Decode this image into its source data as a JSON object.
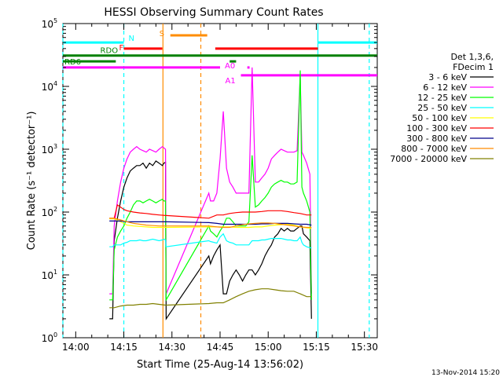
{
  "chart_data": {
    "type": "line",
    "title": "HESSI Observing Summary Count Rates",
    "xlabel": "Start Time (25-Aug-14 13:56:02)",
    "ylabel": "Count Rate (s⁻¹ detector⁻¹)",
    "x_unit": "minutes since 13:56:02",
    "x_ticks": [
      {
        "label": "14:00",
        "min": 4
      },
      {
        "label": "14:15",
        "min": 19
      },
      {
        "label": "14:30",
        "min": 34
      },
      {
        "label": "14:45",
        "min": 49
      },
      {
        "label": "15:00",
        "min": 64
      },
      {
        "label": "15:15",
        "min": 79
      },
      {
        "label": "15:30",
        "min": 94
      }
    ],
    "xlim": [
      0,
      98
    ],
    "y_scale": "log",
    "ylim": [
      1,
      100000
    ],
    "y_ticks": [
      {
        "label": "10",
        "exp": "0",
        "value": 1
      },
      {
        "label": "10",
        "exp": "1",
        "value": 10
      },
      {
        "label": "10",
        "exp": "2",
        "value": 100
      },
      {
        "label": "10",
        "exp": "3",
        "value": 1000
      },
      {
        "label": "10",
        "exp": "4",
        "value": 10000
      },
      {
        "label": "10",
        "exp": "5",
        "value": 100000
      }
    ],
    "legend": {
      "header": [
        "Det 1,3,6,",
        "FDecim 1"
      ],
      "placement": "right"
    },
    "series": [
      {
        "name": "3 - 6 keV",
        "color": "#000000",
        "x": [
          14.5,
          15.5,
          16,
          17,
          18,
          19,
          20,
          21,
          22,
          23,
          24,
          25,
          26,
          27,
          28,
          29,
          30,
          31,
          31.5,
          32,
          32.2,
          45.5,
          46,
          47,
          48,
          49,
          50,
          51,
          52,
          53,
          54,
          55,
          56,
          57,
          58,
          59,
          60,
          61,
          62,
          63,
          64,
          65,
          66,
          67,
          68,
          69,
          70,
          71,
          72,
          73,
          74,
          74.5,
          75,
          76,
          77,
          77.5
        ],
        "y": [
          2,
          2,
          35,
          80,
          150,
          250,
          350,
          450,
          500,
          550,
          550,
          600,
          500,
          600,
          550,
          650,
          600,
          550,
          600,
          620,
          2,
          20,
          15,
          20,
          25,
          30,
          5,
          5,
          8,
          10,
          12,
          10,
          8,
          10,
          12,
          12,
          10,
          12,
          15,
          20,
          25,
          30,
          40,
          45,
          55,
          50,
          55,
          50,
          50,
          55,
          60,
          60,
          45,
          40,
          35,
          2
        ]
      },
      {
        "name": "6 - 12 keV",
        "color": "#ff00ff",
        "x": [
          14.5,
          15.5,
          16,
          17,
          18,
          19,
          20,
          21,
          22,
          23,
          24,
          25,
          26,
          27,
          28,
          29,
          30,
          31,
          31.5,
          32,
          32.2,
          45.5,
          46,
          47,
          48,
          49,
          50,
          51,
          52,
          53,
          54,
          55,
          56,
          57,
          58,
          59,
          60,
          61,
          62,
          63,
          64,
          65,
          66,
          67,
          68,
          69,
          70,
          71,
          72,
          73,
          74,
          74.5,
          75,
          76,
          77,
          77.5
        ],
        "y": [
          5,
          5,
          60,
          150,
          300,
          500,
          700,
          900,
          1000,
          1100,
          1000,
          950,
          900,
          1000,
          950,
          900,
          1000,
          1100,
          1050,
          1000,
          5,
          200,
          150,
          150,
          200,
          700,
          4000,
          500,
          300,
          250,
          200,
          200,
          200,
          200,
          200,
          20000,
          300,
          300,
          350,
          400,
          500,
          700,
          800,
          900,
          1000,
          950,
          900,
          900,
          900,
          950,
          15000,
          900,
          800,
          600,
          400,
          5
        ]
      },
      {
        "name": "12 - 25 keV",
        "color": "#00ff00",
        "x": [
          14.5,
          15.5,
          16,
          17,
          18,
          19,
          20,
          21,
          22,
          23,
          24,
          25,
          26,
          27,
          28,
          29,
          30,
          31,
          31.5,
          32,
          32.2,
          45.5,
          46,
          47,
          48,
          49,
          50,
          51,
          52,
          53,
          54,
          55,
          56,
          57,
          58,
          59,
          60,
          61,
          62,
          63,
          64,
          65,
          66,
          67,
          68,
          69,
          70,
          71,
          72,
          73,
          74,
          74.5,
          75,
          76,
          77,
          77.5
        ],
        "y": [
          4,
          4,
          25,
          40,
          50,
          60,
          80,
          100,
          130,
          150,
          150,
          140,
          150,
          160,
          150,
          140,
          150,
          160,
          150,
          150,
          4,
          60,
          50,
          45,
          40,
          50,
          60,
          80,
          80,
          70,
          60,
          60,
          60,
          60,
          70,
          800,
          120,
          130,
          150,
          170,
          200,
          250,
          280,
          300,
          320,
          300,
          300,
          280,
          280,
          300,
          18000,
          250,
          200,
          150,
          100,
          4
        ]
      },
      {
        "name": "25 - 50 keV",
        "color": "#00ffff",
        "x": [
          14.5,
          15.5,
          16,
          17,
          18,
          19,
          20,
          21,
          22,
          23,
          24,
          25,
          26,
          27,
          28,
          29,
          30,
          31,
          31.5,
          32,
          32.2,
          45.5,
          46,
          47,
          48,
          49,
          50,
          51,
          52,
          53,
          54,
          55,
          56,
          57,
          58,
          59,
          60,
          61,
          62,
          63,
          64,
          65,
          66,
          67,
          68,
          69,
          70,
          71,
          72,
          73,
          74,
          74.5,
          75,
          76,
          77,
          77.5
        ],
        "y": [
          28,
          28,
          30,
          30,
          30,
          32,
          33,
          35,
          35,
          35,
          36,
          35,
          35,
          36,
          37,
          36,
          35,
          36,
          37,
          36,
          28,
          35,
          34,
          33,
          32,
          40,
          45,
          35,
          33,
          32,
          30,
          30,
          30,
          30,
          30,
          35,
          35,
          35,
          36,
          36,
          37,
          38,
          38,
          38,
          38,
          37,
          36,
          36,
          35,
          35,
          40,
          33,
          30,
          28,
          27,
          27
        ]
      },
      {
        "name": "50 - 100 keV",
        "color": "#ffff00",
        "x": [
          14.5,
          16,
          18,
          20,
          22,
          24,
          26,
          28,
          30,
          32,
          32.2,
          45.5,
          48,
          50,
          52,
          54,
          56,
          58,
          60,
          62,
          64,
          66,
          68,
          70,
          72,
          74,
          76,
          77.5
        ],
        "y": [
          78,
          78,
          70,
          62,
          60,
          59,
          58,
          57,
          57,
          57,
          57,
          58,
          58,
          58,
          58,
          57,
          57,
          57,
          58,
          58,
          60,
          62,
          63,
          64,
          62,
          58,
          56,
          55
        ]
      },
      {
        "name": "100 - 300 keV",
        "color": "#ff0000",
        "x": [
          14.5,
          16,
          17,
          18,
          19,
          20,
          22,
          24,
          26,
          28,
          30,
          32,
          32.2,
          45.5,
          48,
          50,
          52,
          54,
          56,
          58,
          60,
          62,
          64,
          66,
          68,
          70,
          72,
          74,
          76,
          77.5
        ],
        "y": [
          80,
          80,
          130,
          120,
          110,
          105,
          100,
          97,
          95,
          92,
          90,
          88,
          88,
          80,
          90,
          90,
          95,
          98,
          100,
          100,
          100,
          102,
          105,
          105,
          105,
          102,
          98,
          95,
          90,
          90
        ]
      },
      {
        "name": "300 - 800 keV",
        "color": "#00008b",
        "x": [
          14.5,
          16,
          18,
          20,
          22,
          24,
          26,
          28,
          30,
          32,
          32.2,
          45.5,
          48,
          50,
          52,
          54,
          56,
          58,
          60,
          62,
          64,
          66,
          68,
          70,
          72,
          74,
          76,
          77.5
        ],
        "y": [
          72,
          72,
          72,
          70,
          70,
          70,
          70,
          70,
          70,
          70,
          70,
          68,
          66,
          64,
          64,
          64,
          64,
          64,
          64,
          65,
          65,
          66,
          66,
          66,
          65,
          64,
          64,
          62
        ]
      },
      {
        "name": "800 - 7000 keV",
        "color": "#ff8c00",
        "x": [
          14.5,
          16,
          18,
          20,
          22,
          24,
          26,
          28,
          30,
          32,
          32.2,
          45.5,
          48,
          50,
          52,
          54,
          56,
          58,
          60,
          62,
          64,
          66,
          68,
          70,
          72,
          74,
          76,
          77.5
        ],
        "y": [
          80,
          80,
          75,
          70,
          66,
          64,
          62,
          61,
          60,
          60,
          60,
          60,
          58,
          57,
          57,
          60,
          63,
          65,
          66,
          67,
          67,
          66,
          64,
          62,
          60,
          58,
          57,
          57
        ]
      },
      {
        "name": "7000 - 20000 keV",
        "color": "#808000",
        "x": [
          14.5,
          16,
          18,
          20,
          22,
          24,
          26,
          28,
          30,
          32,
          32.2,
          45.5,
          48,
          50,
          52,
          54,
          56,
          58,
          60,
          62,
          64,
          66,
          68,
          70,
          72,
          74,
          76,
          77.5
        ],
        "y": [
          3,
          3,
          3.2,
          3.3,
          3.3,
          3.4,
          3.4,
          3.5,
          3.4,
          3.3,
          3.3,
          3.5,
          3.6,
          3.6,
          4,
          4.5,
          5,
          5.5,
          5.8,
          6,
          6,
          5.8,
          5.6,
          5.5,
          5.5,
          5,
          4.5,
          4.5
        ]
      }
    ],
    "vlines": [
      {
        "min": 0,
        "color": "#00ffff",
        "dash": true
      },
      {
        "min": 19,
        "color": "#00ffff",
        "dash": true
      },
      {
        "min": 31.2,
        "color": "#ff8c00",
        "dash": false
      },
      {
        "min": 43,
        "color": "#ff8c00",
        "dash": true
      },
      {
        "min": 79.5,
        "color": "#00ffff",
        "dash": false
      },
      {
        "min": 95.5,
        "color": "#00ffff",
        "dash": true
      }
    ],
    "flags": [
      {
        "label": "N",
        "color": "#00ffff",
        "value": 50000,
        "segments": [
          [
            0,
            19
          ],
          [
            79.5,
            98
          ]
        ]
      },
      {
        "label": "S",
        "color": "#ff8c00",
        "value": 65000,
        "segments": [
          [
            33.5,
            45
          ]
        ]
      },
      {
        "label": "F",
        "color": "#ff0000",
        "value": 40000,
        "segments": [
          [
            19,
            31
          ],
          [
            47.5,
            79.5
          ]
        ]
      },
      {
        "label": "RDO",
        "color": "#008000",
        "value": 31000,
        "segments": [
          [
            0,
            19
          ],
          [
            19,
            98
          ]
        ]
      },
      {
        "label": "RD6",
        "color": "#008000",
        "value": 25000,
        "segments": [
          [
            0,
            16.5
          ],
          [
            52,
            54
          ]
        ]
      },
      {
        "label": "A0",
        "color": "#ff00ff",
        "value": 20000,
        "segments": [
          [
            0,
            49
          ],
          [
            57.5,
            58.2
          ]
        ]
      },
      {
        "label": "A1",
        "color": "#ff00ff",
        "value": 15000,
        "segments": [
          [
            55.5,
            98
          ]
        ]
      }
    ]
  },
  "footer": {
    "date_stamp": "13-Nov-2014 15:20"
  }
}
